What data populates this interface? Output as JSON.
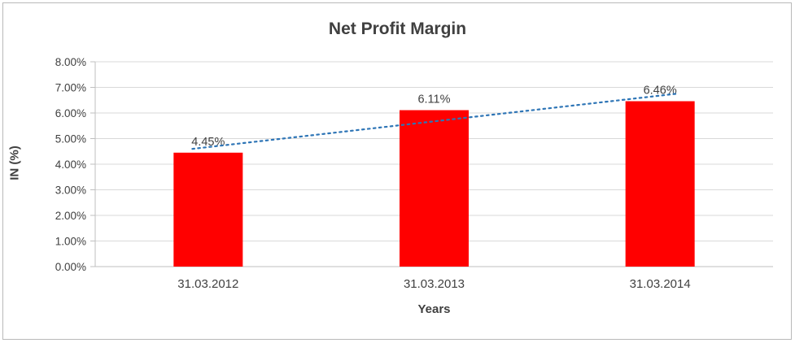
{
  "chart_data": {
    "type": "bar",
    "title": "Net Profit Margin",
    "categories": [
      "31.03.2012",
      "31.03.2013",
      "31.03.2014"
    ],
    "values": [
      4.45,
      6.11,
      6.46
    ],
    "data_labels": [
      "4.45%",
      "6.11%",
      "6.46%"
    ],
    "xlabel": "Years",
    "ylabel": "IN (%)",
    "ylim": [
      0,
      8
    ],
    "ytick_step": 1,
    "ytick_labels": [
      "0.00%",
      "1.00%",
      "2.00%",
      "3.00%",
      "4.00%",
      "5.00%",
      "6.00%",
      "7.00%",
      "8.00%"
    ],
    "grid": true,
    "legend": "none",
    "colors": {
      "bar": "#ff0000",
      "trendline": "#2e75b6",
      "gridline": "#d9d9d9",
      "axis": "#bfbfbf",
      "text": "#404040"
    },
    "trendline": {
      "style": "dotted"
    }
  }
}
